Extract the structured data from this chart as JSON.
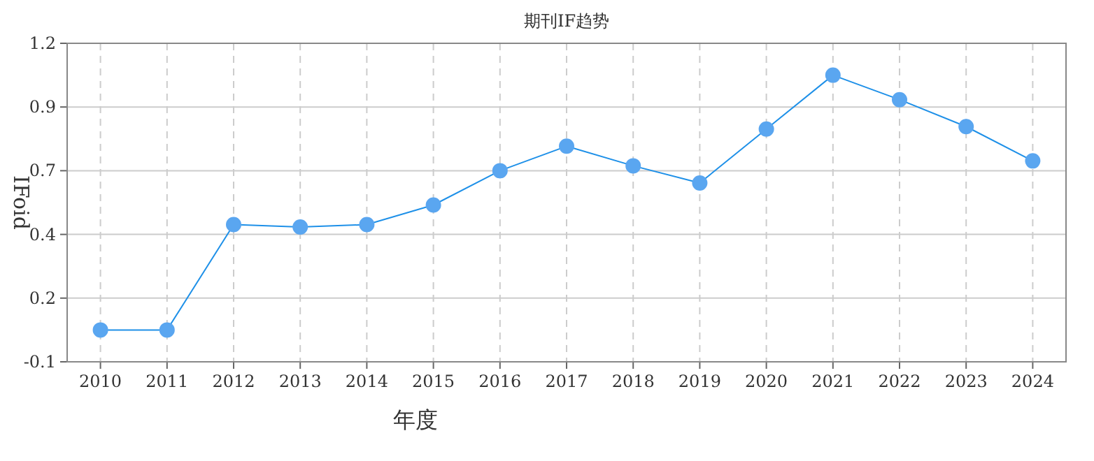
{
  "chart_data": {
    "type": "line",
    "title": "期刊IF趋势",
    "xlabel": "年度",
    "ylabel": "IFoid",
    "categories": [
      "2010",
      "2011",
      "2012",
      "2013",
      "2014",
      "2015",
      "2016",
      "2017",
      "2018",
      "2019",
      "2020",
      "2021",
      "2022",
      "2023",
      "2024"
    ],
    "series": [
      {
        "color": "#1e90e8",
        "values": [
          0.03,
          0.03,
          0.46,
          0.45,
          0.46,
          0.54,
          0.68,
          0.78,
          0.7,
          0.63,
          0.85,
          1.07,
          0.97,
          0.86,
          0.72
        ]
      }
    ],
    "ylim": [
      -0.1,
      1.2
    ],
    "yticks": [
      -0.1,
      {
        "value": 0.16,
        "label": "0.2"
      },
      {
        "value": 0.42,
        "label": "0.4"
      },
      {
        "value": 0.68,
        "label": "0.7"
      },
      {
        "value": 0.94,
        "label": "0.9"
      },
      1.2
    ],
    "grid": true,
    "marker": "circle"
  }
}
